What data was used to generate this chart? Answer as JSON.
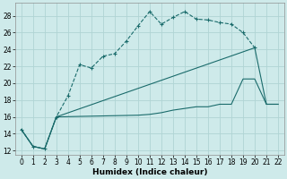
{
  "xlabel": "Humidex (Indice chaleur)",
  "xlim": [
    -0.5,
    22.5
  ],
  "ylim": [
    11.5,
    29.5
  ],
  "yticks": [
    12,
    14,
    16,
    18,
    20,
    22,
    24,
    26,
    28
  ],
  "xticks": [
    0,
    1,
    2,
    3,
    4,
    5,
    6,
    7,
    8,
    9,
    10,
    11,
    12,
    13,
    14,
    15,
    16,
    17,
    18,
    19,
    20,
    21,
    22
  ],
  "bg_color": "#ceeaea",
  "grid_color": "#b0d4d4",
  "line_color": "#1a6b6b",
  "line1_x": [
    0,
    1,
    2,
    3,
    4,
    5,
    6,
    7,
    8,
    9,
    10,
    11,
    12,
    13,
    14,
    15,
    16,
    17,
    18,
    19,
    20
  ],
  "line1_y": [
    14.5,
    12.5,
    12.2,
    16.0,
    18.5,
    22.2,
    21.8,
    23.2,
    23.5,
    25.0,
    26.8,
    28.5,
    27.0,
    27.8,
    28.5,
    27.6,
    27.5,
    27.2,
    27.0,
    26.0,
    24.2
  ],
  "line2_x": [
    0,
    1,
    2,
    3,
    20,
    21,
    22
  ],
  "line2_y": [
    14.5,
    12.5,
    12.2,
    16.0,
    24.2,
    17.5,
    17.5
  ],
  "line3_x": [
    0,
    1,
    2,
    3,
    10,
    11,
    12,
    13,
    14,
    15,
    16,
    17,
    18,
    19,
    20,
    21,
    22
  ],
  "line3_y": [
    14.5,
    12.5,
    12.2,
    16.0,
    16.2,
    16.3,
    16.5,
    16.8,
    17.0,
    17.2,
    17.2,
    17.5,
    17.5,
    20.5,
    20.5,
    17.5,
    17.5
  ]
}
